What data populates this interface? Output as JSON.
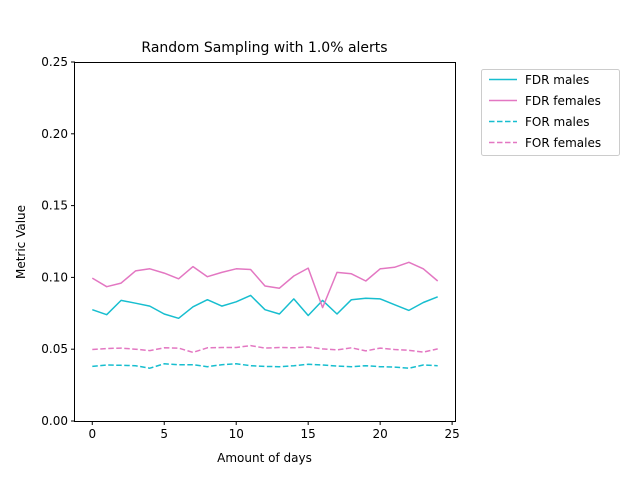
{
  "chart_data": {
    "type": "line",
    "title": "Random Sampling with 1.0% alerts",
    "xlabel": "Amount of days",
    "ylabel": "Metric Value",
    "xlim": [
      -1.2,
      25.2
    ],
    "ylim": [
      0,
      0.25
    ],
    "xticks": [
      0,
      5,
      10,
      15,
      20,
      25
    ],
    "xtick_labels": [
      "0",
      "5",
      "10",
      "15",
      "20",
      "25"
    ],
    "yticks": [
      0.0,
      0.05,
      0.1,
      0.15,
      0.2,
      0.25
    ],
    "ytick_labels": [
      "0.00",
      "0.05",
      "0.10",
      "0.15",
      "0.20",
      "0.25"
    ],
    "grid": false,
    "legend_position": "outside-top-right",
    "x": [
      0,
      1,
      2,
      3,
      4,
      5,
      6,
      7,
      8,
      9,
      10,
      11,
      12,
      13,
      14,
      15,
      16,
      17,
      18,
      19,
      20,
      21,
      22,
      23,
      24
    ],
    "series": [
      {
        "name": "FDR males",
        "color": "#17becf",
        "linestyle": "solid",
        "values": [
          0.0775,
          0.074,
          0.084,
          0.082,
          0.08,
          0.0745,
          0.0715,
          0.0795,
          0.0845,
          0.08,
          0.083,
          0.0875,
          0.0775,
          0.0745,
          0.085,
          0.0735,
          0.084,
          0.0745,
          0.0845,
          0.0855,
          0.085,
          0.081,
          0.077,
          0.0825,
          0.0865
        ]
      },
      {
        "name": "FDR females",
        "color": "#e377c2",
        "linestyle": "solid",
        "values": [
          0.0995,
          0.0935,
          0.096,
          0.1045,
          0.106,
          0.103,
          0.099,
          0.1075,
          0.1005,
          0.1035,
          0.106,
          0.1055,
          0.094,
          0.0925,
          0.101,
          0.1065,
          0.079,
          0.1035,
          0.1025,
          0.0975,
          0.106,
          0.107,
          0.1105,
          0.106,
          0.0975
        ]
      },
      {
        "name": "FOR males",
        "color": "#17becf",
        "linestyle": "dashed",
        "values": [
          0.038,
          0.039,
          0.0388,
          0.0385,
          0.0368,
          0.0398,
          0.0392,
          0.0392,
          0.0378,
          0.0392,
          0.0398,
          0.0385,
          0.038,
          0.0378,
          0.0385,
          0.0395,
          0.039,
          0.0382,
          0.0378,
          0.0385,
          0.0378,
          0.0375,
          0.0368,
          0.039,
          0.0385
        ]
      },
      {
        "name": "FOR females",
        "color": "#e377c2",
        "linestyle": "dashed",
        "values": [
          0.0498,
          0.0505,
          0.0508,
          0.05,
          0.049,
          0.051,
          0.0508,
          0.0478,
          0.051,
          0.0512,
          0.0512,
          0.0525,
          0.0508,
          0.0512,
          0.051,
          0.0515,
          0.0502,
          0.0495,
          0.051,
          0.0488,
          0.0508,
          0.0498,
          0.0492,
          0.048,
          0.0502
        ]
      }
    ]
  }
}
